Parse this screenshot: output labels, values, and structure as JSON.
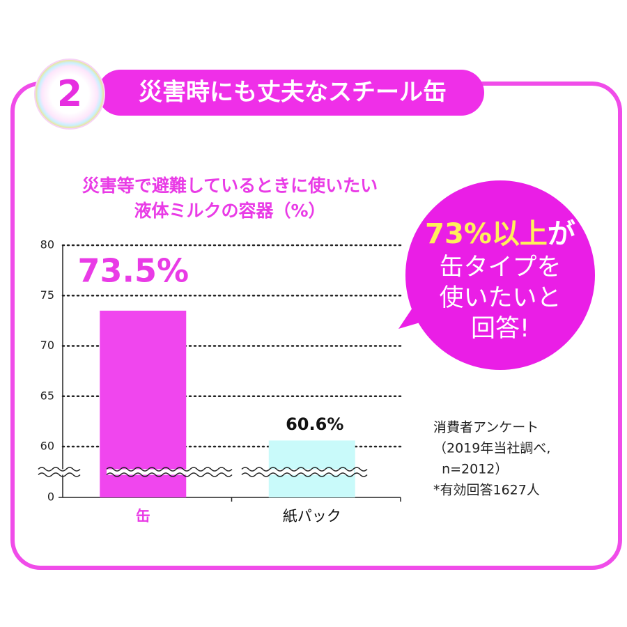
{
  "header": {
    "number": "2",
    "title": "災害時にも丈夫なスチール缶"
  },
  "chart_data": {
    "type": "bar",
    "title_lines": [
      "災害等で避難しているときに使いたい",
      "液体ミルクの容器（%）"
    ],
    "categories": [
      "缶",
      "紙パック"
    ],
    "category_colors": [
      "#e93be6",
      "#111111"
    ],
    "values": [
      73.5,
      60.6
    ],
    "value_labels": [
      "73.5%",
      "60.6%"
    ],
    "colors": [
      "#f046ee",
      "#c9fafa"
    ],
    "ylim": [
      0,
      80
    ],
    "yticks": [
      0,
      60,
      65,
      70,
      75,
      80
    ],
    "y_break": [
      0,
      60
    ],
    "grid": true
  },
  "callout": {
    "emphasis": "73%以上",
    "lines": [
      "が",
      "缶タイプを",
      "使いたいと",
      "回答!"
    ]
  },
  "note": {
    "lines": [
      "消費者アンケート",
      "（2019年当社調べ,",
      "  n=2012）",
      "*有効回答1627人"
    ]
  }
}
